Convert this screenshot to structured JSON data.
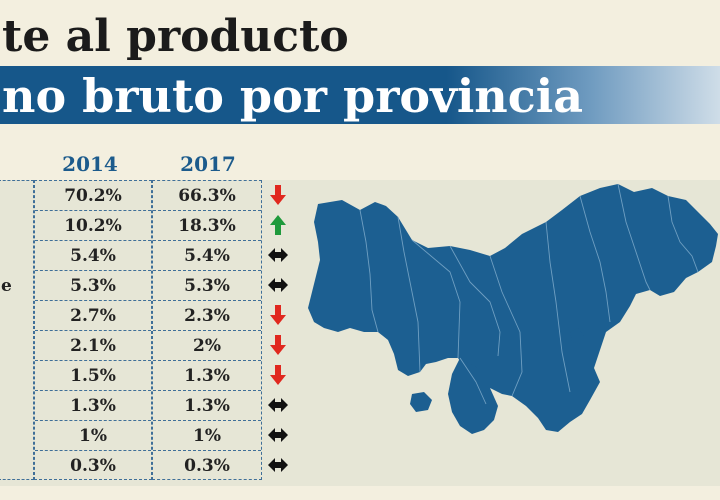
{
  "title": {
    "line1": "te al producto",
    "line2": "no bruto por provincia"
  },
  "table": {
    "headers": [
      "2014",
      "2017"
    ],
    "partial_label_row4": "e",
    "rows": [
      {
        "y2014": "70.2%",
        "y2017": "66.3%",
        "trend": "down"
      },
      {
        "y2014": "10.2%",
        "y2017": "18.3%",
        "trend": "up"
      },
      {
        "y2014": "5.4%",
        "y2017": "5.4%",
        "trend": "same"
      },
      {
        "y2014": "5.3%",
        "y2017": "5.3%",
        "trend": "same"
      },
      {
        "y2014": "2.7%",
        "y2017": "2.3%",
        "trend": "down"
      },
      {
        "y2014": "2.1%",
        "y2017": "2%",
        "trend": "down"
      },
      {
        "y2014": "1.5%",
        "y2017": "1.3%",
        "trend": "down"
      },
      {
        "y2014": "1.3%",
        "y2017": "1.3%",
        "trend": "same"
      },
      {
        "y2014": "1%",
        "y2017": "1%",
        "trend": "same"
      },
      {
        "y2014": "0.3%",
        "y2017": "0.3%",
        "trend": "same"
      }
    ]
  },
  "colors": {
    "band": "#16578a",
    "map": "#1c5f91",
    "header_text": "#1c5b8c",
    "up": "#1f9a3c",
    "down": "#e0281f",
    "same": "#111111"
  },
  "icons": {
    "down": "down-arrow-icon",
    "up": "up-arrow-icon",
    "same": "left-right-arrow-icon"
  }
}
